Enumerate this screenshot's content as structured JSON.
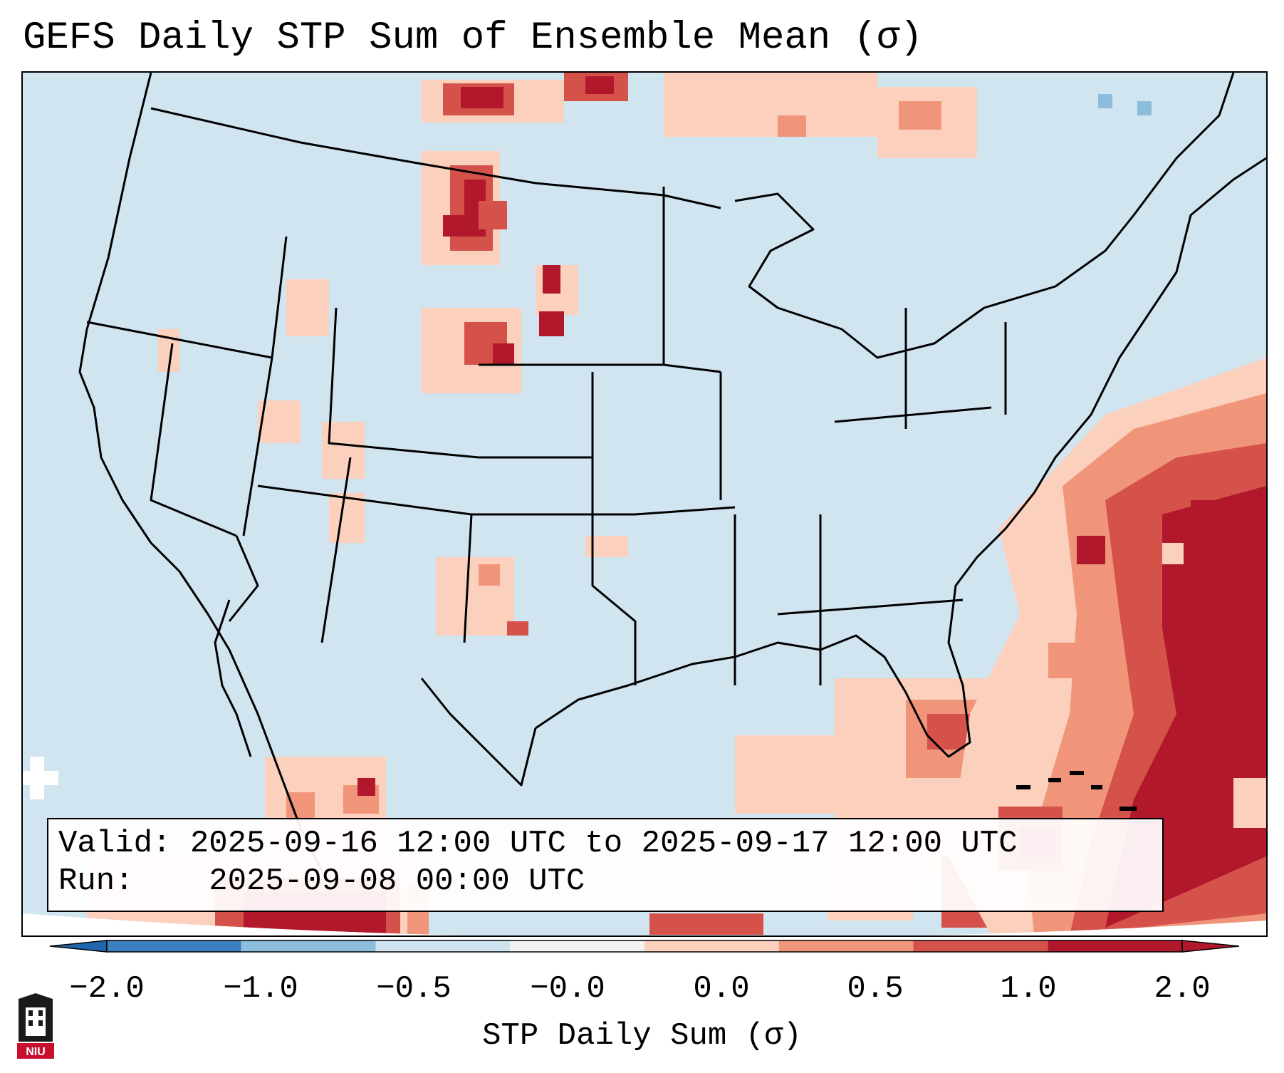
{
  "title": "GEFS Daily STP Sum of Ensemble Mean (σ)",
  "info": {
    "valid_label": "Valid:",
    "valid_value": "2025-09-16 12:00 UTC to 2025-09-17 12:00 UTC",
    "run_label": "Run:",
    "run_value": "2025-09-08 00:00 UTC"
  },
  "colorbar": {
    "label": "STP Daily Sum (σ)",
    "ticks": [
      "−2.0",
      "−1.0",
      "−0.5",
      "−0.0",
      "0.0",
      "0.5",
      "1.0",
      "2.0"
    ],
    "colors": [
      "#3b7fbf",
      "#8cbddc",
      "#cfe3f0",
      "#f3f3f3",
      "#fbd0bd",
      "#f0957a",
      "#d5524a",
      "#b2182b"
    ],
    "extend": "both"
  },
  "map": {
    "ocean_color": "#d1e5f0",
    "outside_color": "#ffffff",
    "projection": "Lambert conformal, CONUS",
    "field": "STP daily sum anomaly (σ)"
  },
  "logo": {
    "text": "NIU",
    "bg": "#c8102e"
  }
}
